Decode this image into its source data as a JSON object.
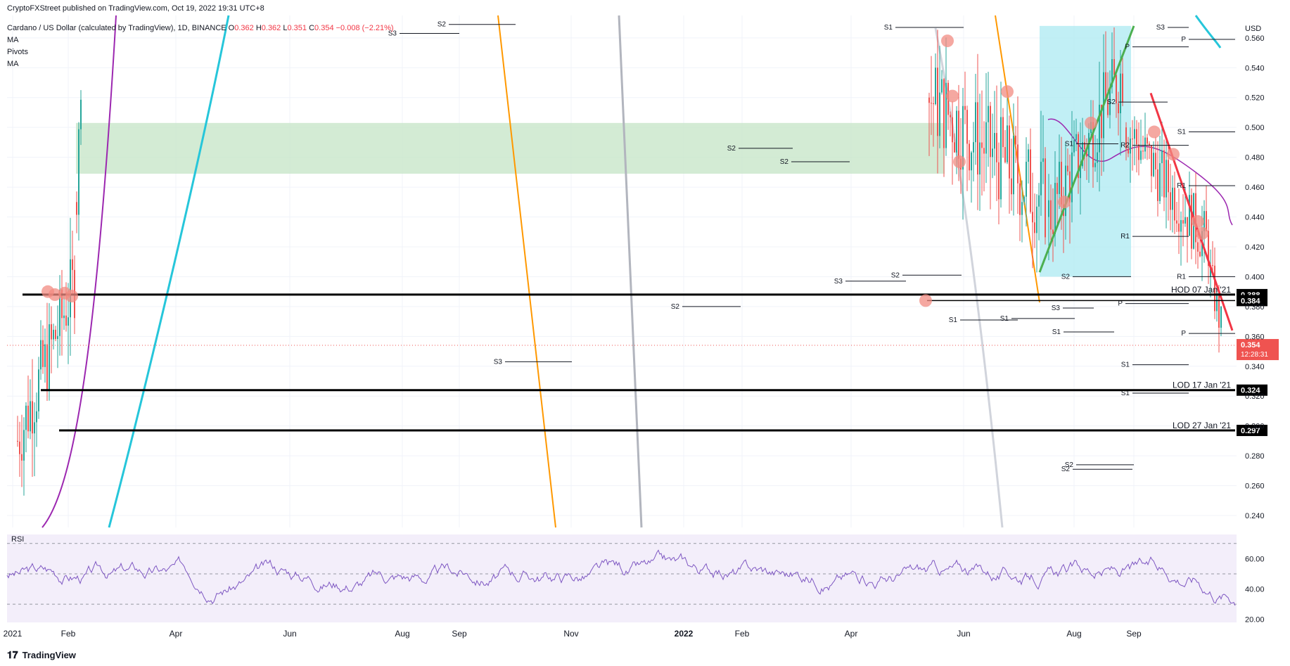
{
  "header": {
    "published": "CryptoFXStreet published on TradingView.com, Oct 19, 2022 19:31 UTC+8",
    "symbol": "Cardano / US Dollar (calculated by TradingView), 1D, BINANCE",
    "ohlc": {
      "O": "0.362",
      "H": "0.362",
      "L": "0.351",
      "C": "0.354",
      "change": "−0.008 (−2.21%)"
    },
    "indicators": [
      "MA",
      "Pivots",
      "MA"
    ]
  },
  "footer": {
    "brand": "TradingView"
  },
  "chart_data": {
    "type": "line",
    "currency_label": "USD",
    "x_ticks": [
      "2021",
      "Feb",
      "Apr",
      "Jun",
      "Aug",
      "Sep",
      "Nov",
      "2022",
      "Feb",
      "Apr",
      "Jun",
      "Aug",
      "Sep"
    ],
    "y_ticks": [
      "0.560",
      "0.540",
      "0.520",
      "0.500",
      "0.480",
      "0.460",
      "0.440",
      "0.420",
      "0.400",
      "0.380",
      "0.360",
      "0.340",
      "0.320",
      "0.300",
      "0.280",
      "0.260",
      "0.240"
    ],
    "ylim": [
      0.232,
      0.575
    ],
    "price_levels": [
      {
        "label": "HOD 07 Jan '21",
        "value": 0.388,
        "tag": "0.388"
      },
      {
        "label": "",
        "value": 0.384,
        "tag": "0.384"
      },
      {
        "label": "LOD 17 Jan '21",
        "value": 0.324,
        "tag": "0.324"
      },
      {
        "label": "LOD 27 Jan '21",
        "value": 0.297,
        "tag": "0.297"
      }
    ],
    "current_price": {
      "value": 0.354,
      "tag": "0.354",
      "countdown": "12:28:31"
    },
    "zones": [
      {
        "name": "green-zone",
        "from": 0.469,
        "to": 0.503,
        "color": "#c8e6c9"
      },
      {
        "name": "blue-zone",
        "from": 0.4,
        "to": 0.568,
        "color": "#b2ebf2"
      }
    ],
    "pivot_labels": [
      "S1",
      "S2",
      "S3",
      "S2",
      "S2",
      "S2",
      "S3",
      "S2",
      "S3",
      "S3",
      "S1",
      "S1",
      "S1",
      "S2",
      "S3",
      "S2",
      "S1",
      "R1",
      "P",
      "P",
      "S1",
      "R2",
      "R1",
      "R1",
      "P",
      "P",
      "S1",
      "S1",
      "S2",
      "S2"
    ],
    "rsi": {
      "label": "RSI",
      "y_ticks": [
        "60.00",
        "40.00",
        "20.00"
      ],
      "ylim": [
        18,
        75
      ],
      "bands": [
        70,
        50,
        30
      ],
      "color": "#7e57c2"
    },
    "colors": {
      "up": "#26a69a",
      "down": "#ef5350",
      "ma1": "#9c27b0",
      "ma2": "#26c6da",
      "level": "#000000",
      "price_tag": "#ef5350",
      "trend_green": "#4caf50",
      "trend_red": "#f23645",
      "orange": "#ff9800",
      "grey": "#b2b5be"
    }
  }
}
